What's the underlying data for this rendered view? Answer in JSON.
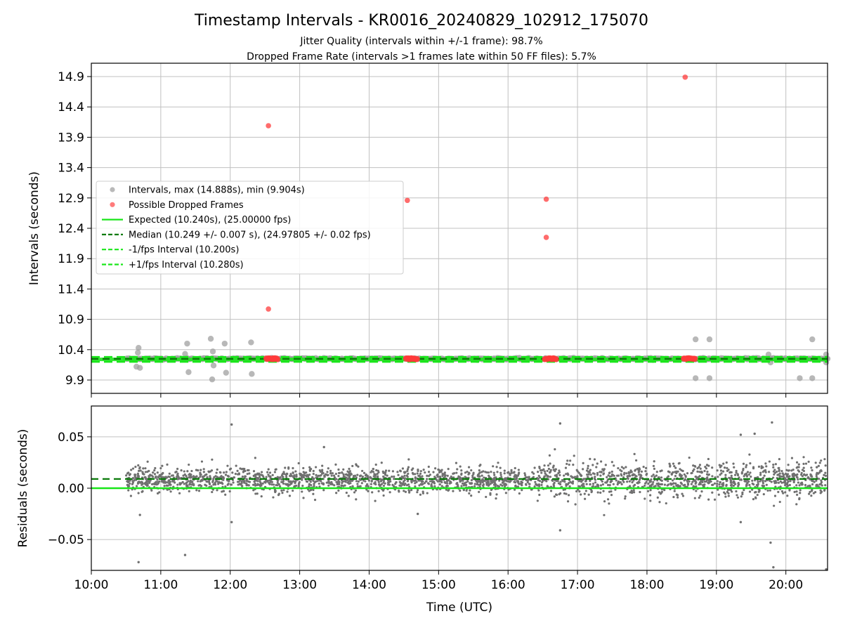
{
  "title": "Timestamp Intervals - KR0016_20240829_102912_175070",
  "subtitle_lines": [
    "Jitter Quality (intervals within +/-1 frame): 98.7%",
    "Dropped Frame Rate (intervals >1 frames late within 50 FF files): 5.7%"
  ],
  "xlabel": "Time (UTC)",
  "colors": {
    "intervals": "#a0a0a0",
    "dropped": "#ff3b3b",
    "expected": "#19e619",
    "median": "#0a7a0a",
    "bounds": "#19e619",
    "residual_points": "#707070",
    "grid": "#c0c0c0"
  },
  "legend": {
    "placement": "center-left",
    "entries": [
      {
        "label": "Intervals, max (14.888s), min (9.904s)",
        "kind": "marker",
        "color": "#a8a8a8"
      },
      {
        "label": "Possible Dropped Frames",
        "kind": "marker",
        "color": "#ff5a5a"
      },
      {
        "label": "Expected (10.240s), (25.00000 fps)",
        "kind": "solid",
        "color": "#19e619"
      },
      {
        "label": "Median (10.249 +/- 0.007 s), (24.97805 +/- 0.02 fps)",
        "kind": "dashed",
        "color": "#0a7a0a"
      },
      {
        "label": "-1/fps Interval (10.200s)",
        "kind": "dashed",
        "color": "#19e619"
      },
      {
        "label": "+1/fps Interval (10.280s)",
        "kind": "dashed",
        "color": "#19e619"
      }
    ]
  },
  "chart_data": [
    {
      "type": "scatter",
      "ylabel": "Intervals (seconds)",
      "x_unit": "hours UTC",
      "xlim": [
        10.0,
        20.6
      ],
      "ylim": [
        9.68,
        15.12
      ],
      "yticks": [
        9.9,
        10.4,
        10.9,
        11.4,
        11.9,
        12.4,
        12.9,
        13.4,
        13.9,
        14.4,
        14.9
      ],
      "ytick_labels": [
        "9.9",
        "10.4",
        "10.9",
        "11.4",
        "11.9",
        "12.4",
        "12.9",
        "13.4",
        "13.9",
        "14.4",
        "14.9"
      ],
      "grid": true,
      "series": [
        {
          "name": "Intervals, max (14.888s), min (9.904s)",
          "dense_band": {
            "x_start": 10.5,
            "x_end": 20.6,
            "y_center": 10.25,
            "y_spread": 0.03
          },
          "points": [
            {
              "x": 10.65,
              "y": 10.12
            },
            {
              "x": 10.67,
              "y": 10.35
            },
            {
              "x": 10.68,
              "y": 10.43
            },
            {
              "x": 10.7,
              "y": 10.1
            },
            {
              "x": 11.35,
              "y": 10.33
            },
            {
              "x": 11.38,
              "y": 10.5
            },
            {
              "x": 11.4,
              "y": 10.03
            },
            {
              "x": 11.72,
              "y": 10.58
            },
            {
              "x": 11.74,
              "y": 9.91
            },
            {
              "x": 11.75,
              "y": 10.37
            },
            {
              "x": 11.76,
              "y": 10.14
            },
            {
              "x": 11.92,
              "y": 10.5
            },
            {
              "x": 11.94,
              "y": 10.02
            },
            {
              "x": 12.3,
              "y": 10.52
            },
            {
              "x": 12.31,
              "y": 10.0
            },
            {
              "x": 18.7,
              "y": 10.57
            },
            {
              "x": 18.7,
              "y": 9.93
            },
            {
              "x": 18.9,
              "y": 10.57
            },
            {
              "x": 18.9,
              "y": 9.93
            },
            {
              "x": 19.75,
              "y": 10.32
            },
            {
              "x": 19.78,
              "y": 10.19
            },
            {
              "x": 20.2,
              "y": 9.93
            },
            {
              "x": 20.38,
              "y": 10.57
            },
            {
              "x": 20.38,
              "y": 9.93
            },
            {
              "x": 20.58,
              "y": 10.32
            },
            {
              "x": 20.58,
              "y": 10.19
            }
          ]
        },
        {
          "name": "Possible Dropped Frames",
          "points": [
            {
              "x": 12.55,
              "y": 14.09
            },
            {
              "x": 12.55,
              "y": 11.07
            },
            {
              "x": 14.55,
              "y": 12.86
            },
            {
              "x": 16.55,
              "y": 12.88
            },
            {
              "x": 16.55,
              "y": 12.25
            },
            {
              "x": 18.55,
              "y": 14.89
            }
          ],
          "clusters": [
            {
              "x_start": 12.52,
              "x_end": 12.68,
              "y": 10.25
            },
            {
              "x_start": 14.53,
              "x_end": 14.69,
              "y": 10.25
            },
            {
              "x_start": 16.53,
              "x_end": 16.69,
              "y": 10.25
            },
            {
              "x_start": 18.53,
              "x_end": 18.69,
              "y": 10.25
            }
          ]
        }
      ],
      "reference_lines": [
        {
          "name": "Expected",
          "y": 10.24,
          "style": "solid"
        },
        {
          "name": "Median",
          "y": 10.249,
          "style": "dashed"
        },
        {
          "name": "-1/fps Interval",
          "y": 10.2,
          "style": "dashed"
        },
        {
          "name": "+1/fps Interval",
          "y": 10.28,
          "style": "dashed"
        }
      ]
    },
    {
      "type": "scatter",
      "ylabel": "Residuals (seconds)",
      "xlabel": "Time (UTC)",
      "xlim": [
        10.0,
        20.6
      ],
      "ylim": [
        -0.08,
        0.08
      ],
      "yticks": [
        -0.05,
        0.0,
        0.05
      ],
      "ytick_labels": [
        "−0.05",
        "0.00",
        "0.05"
      ],
      "xticks": [
        10,
        11,
        12,
        13,
        14,
        15,
        16,
        17,
        18,
        19,
        20
      ],
      "xtick_labels": [
        "10:00",
        "11:00",
        "12:00",
        "13:00",
        "14:00",
        "15:00",
        "16:00",
        "17:00",
        "18:00",
        "19:00",
        "20:00"
      ],
      "grid": true,
      "series": [
        {
          "name": "residuals",
          "dense_band": {
            "x_start": 10.5,
            "x_end": 20.6,
            "y_center": 0.008,
            "y_spread": 0.012
          },
          "points": [
            {
              "x": 10.7,
              "y": -0.026
            },
            {
              "x": 10.68,
              "y": -0.072
            },
            {
              "x": 11.35,
              "y": -0.065
            },
            {
              "x": 12.02,
              "y": 0.062
            },
            {
              "x": 12.02,
              "y": -0.033
            },
            {
              "x": 13.35,
              "y": 0.04
            },
            {
              "x": 14.7,
              "y": -0.025
            },
            {
              "x": 16.75,
              "y": 0.063
            },
            {
              "x": 16.75,
              "y": -0.041
            },
            {
              "x": 19.35,
              "y": 0.052
            },
            {
              "x": 19.55,
              "y": 0.053
            },
            {
              "x": 19.8,
              "y": 0.064
            },
            {
              "x": 19.78,
              "y": -0.053
            },
            {
              "x": 19.82,
              "y": -0.077
            },
            {
              "x": 20.58,
              "y": -0.079
            },
            {
              "x": 19.35,
              "y": -0.033
            }
          ]
        }
      ],
      "reference_lines": [
        {
          "name": "Expected",
          "y": 0.0,
          "style": "solid"
        },
        {
          "name": "Median",
          "y": 0.009,
          "style": "dashed"
        }
      ]
    }
  ]
}
